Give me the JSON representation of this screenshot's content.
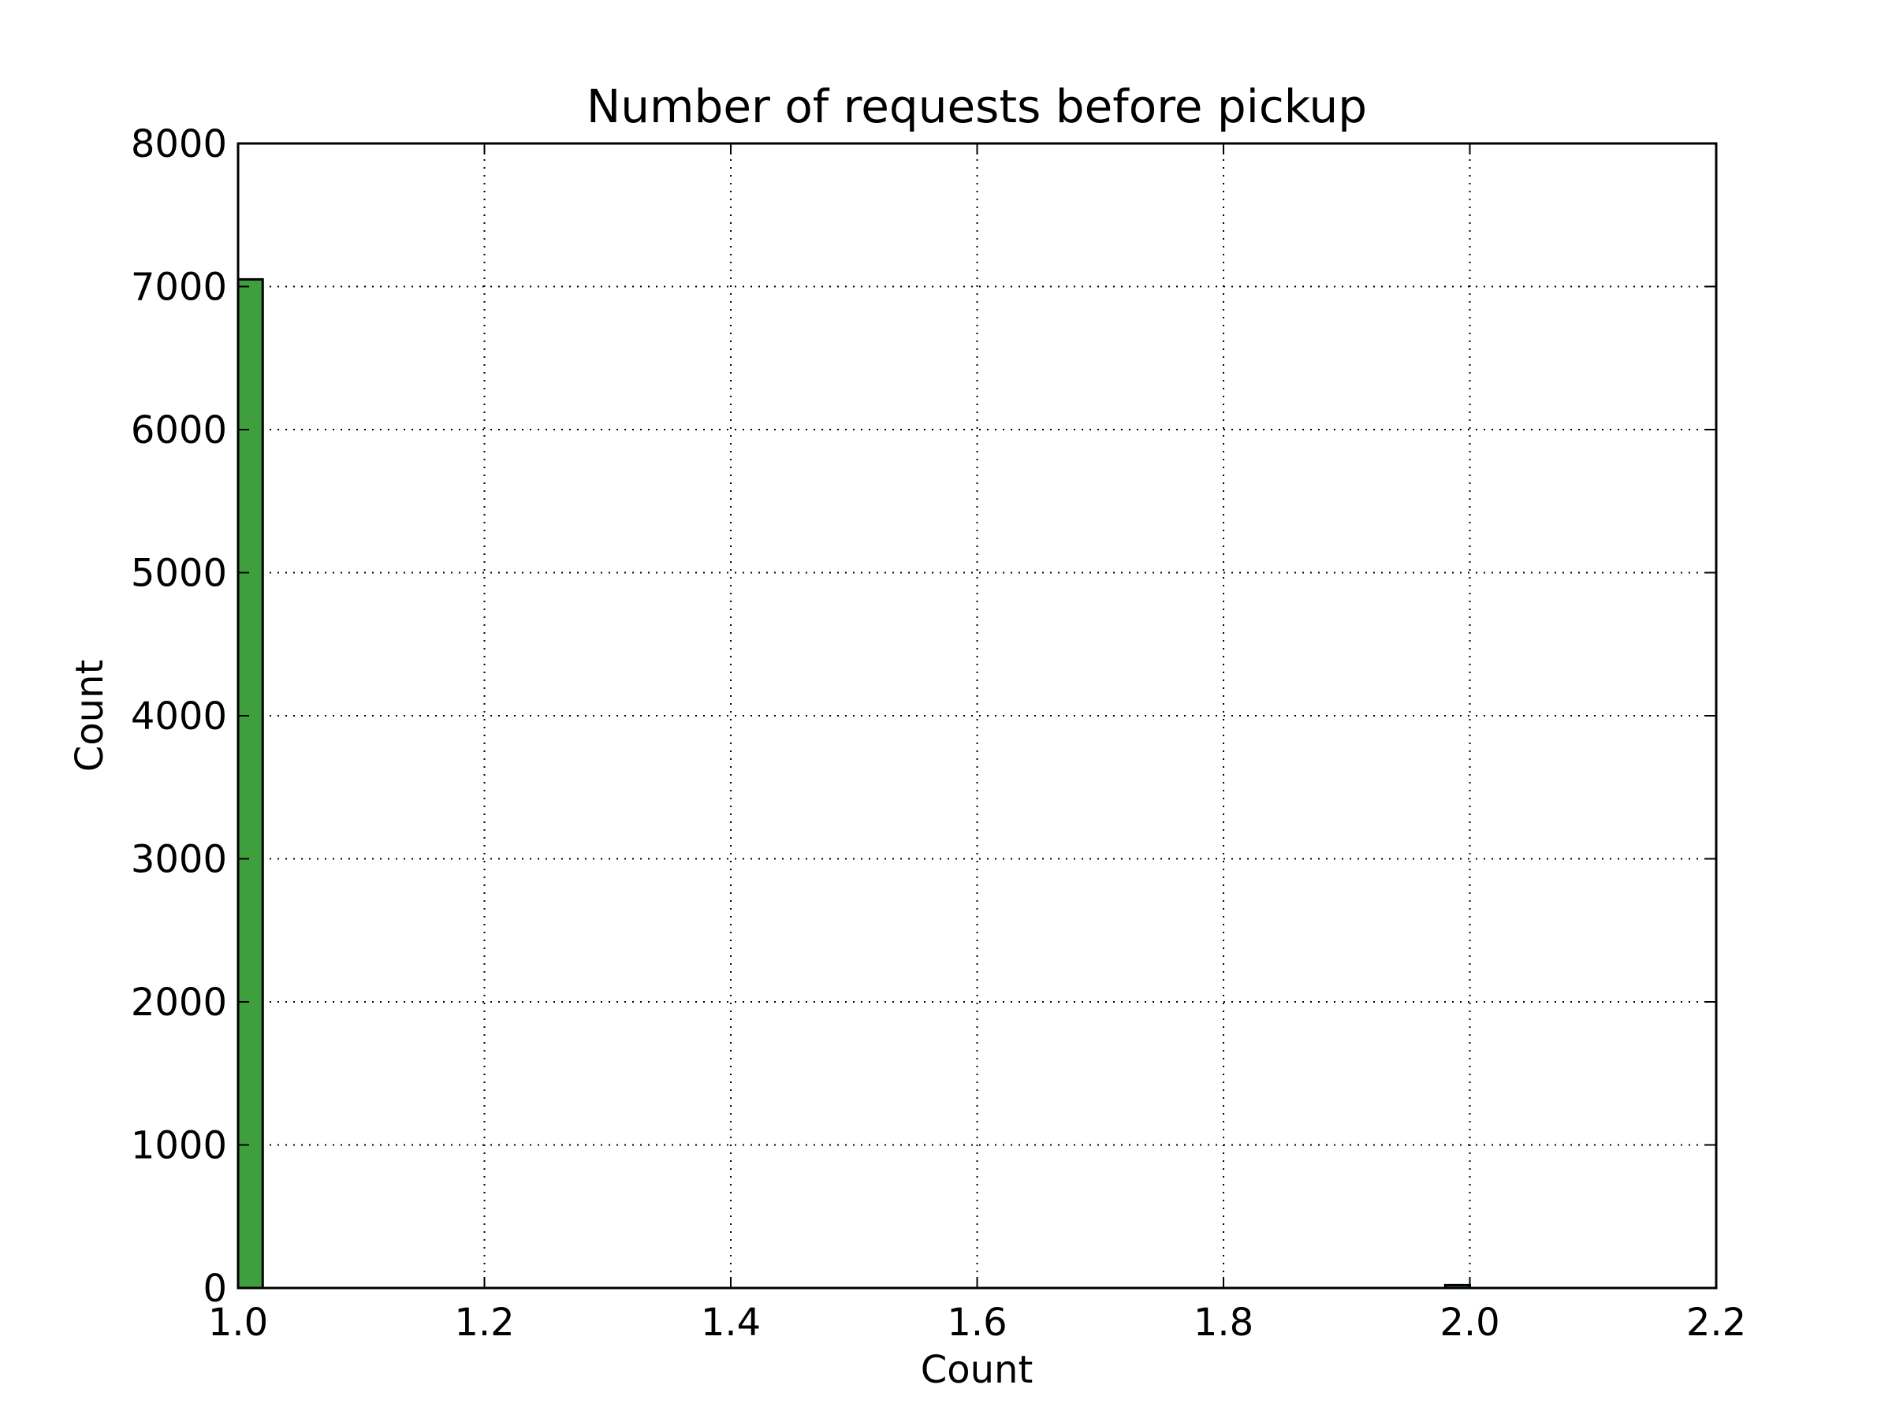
{
  "chart_data": {
    "type": "bar",
    "title": "Number of requests before pickup",
    "xlabel": "Count",
    "ylabel": "Count",
    "xlim": [
      1.0,
      2.2
    ],
    "ylim": [
      0,
      8000
    ],
    "xticks": [
      "1.0",
      "1.2",
      "1.4",
      "1.6",
      "1.8",
      "2.0",
      "2.2"
    ],
    "yticks": [
      "0",
      "1000",
      "2000",
      "3000",
      "4000",
      "5000",
      "6000",
      "7000",
      "8000"
    ],
    "grid": true,
    "bars": [
      {
        "x_start": 1.0,
        "x_end": 1.02,
        "value": 7050
      },
      {
        "x_start": 1.98,
        "x_end": 2.0,
        "value": 20
      }
    ],
    "colors": {
      "bar_fill": "#3f9f3f",
      "bar_edge": "#000000",
      "grid": "#000000",
      "axes": "#000000"
    }
  }
}
